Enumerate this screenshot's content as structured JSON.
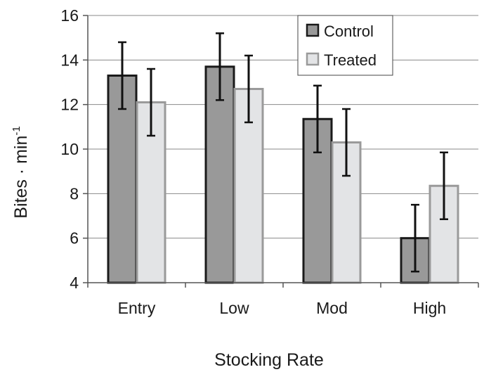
{
  "chart_data": {
    "type": "bar",
    "categories": [
      "Entry",
      "Low",
      "Mod",
      "High"
    ],
    "series": [
      {
        "name": "Control",
        "values": [
          13.3,
          13.7,
          11.35,
          6.0
        ],
        "errors": [
          1.5,
          1.5,
          1.5,
          1.5
        ],
        "color": "#999999"
      },
      {
        "name": "Treated",
        "values": [
          12.1,
          12.7,
          10.3,
          8.35
        ],
        "errors": [
          1.5,
          1.5,
          1.5,
          1.5
        ],
        "color": "#e3e4e6"
      }
    ],
    "xlabel": "Stocking Rate",
    "ylabel": "Bites · min",
    "ylabel_superscript": "-1",
    "ylim": [
      4,
      16
    ],
    "yticks": [
      "4",
      "6",
      "8",
      "10",
      "12",
      "14",
      "16"
    ],
    "grid": true,
    "legend_position": "top-right"
  }
}
